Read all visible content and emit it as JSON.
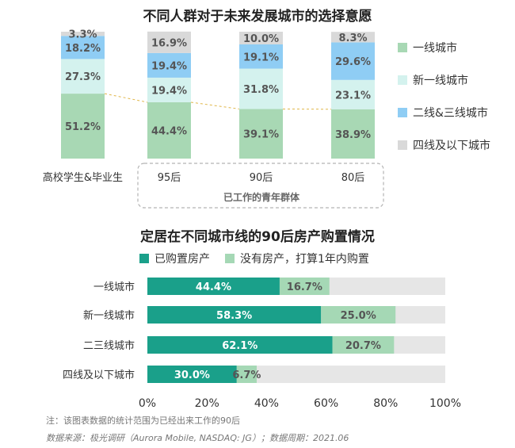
{
  "top_chart": {
    "title": "不同人群对于未来发展城市的选择意愿",
    "group_label": "已工作的青年群体",
    "legend": [
      {
        "label": "一线城市",
        "color": "#a8d8b4"
      },
      {
        "label": "新一线城市",
        "color": "#d4f2ee"
      },
      {
        "label": "二线&三线城市",
        "color": "#8fcdf4"
      },
      {
        "label": "四线及以下城市",
        "color": "#d9d9d9"
      }
    ]
  },
  "bottom_chart": {
    "title": "定居在不同城市线的90后房产购置情况",
    "legend": [
      {
        "label": "已购置房产",
        "color": "#1aa08a"
      },
      {
        "label": "没有房产，打算1年内购置",
        "color": "#a5d8b5"
      }
    ]
  },
  "note": "注：该图表数据的统计范围为已经出来工作的90后",
  "source": "数据来源：极光调研（Aurora Mobile, NASDAQ: JG）；数据周期：2021.06",
  "chart_data": [
    {
      "type": "bar",
      "stacked": true,
      "orientation": "vertical",
      "title": "不同人群对于未来发展城市的选择意愿",
      "categories": [
        "高校学生&毕业生",
        "95后",
        "90后",
        "80后"
      ],
      "series": [
        {
          "name": "一线城市",
          "values": [
            51.2,
            44.4,
            39.1,
            38.9
          ],
          "color": "#a8d8b4"
        },
        {
          "name": "新一线城市",
          "values": [
            27.3,
            19.4,
            31.8,
            23.1
          ],
          "color": "#d4f2ee"
        },
        {
          "name": "二线&三线城市",
          "values": [
            18.2,
            19.4,
            19.1,
            29.6
          ],
          "color": "#8fcdf4"
        },
        {
          "name": "四线及以下城市",
          "values": [
            3.3,
            16.9,
            10.0,
            8.3
          ],
          "color": "#d9d9d9"
        }
      ],
      "value_labels": [
        [
          "51.2%",
          "44.4%",
          "39.1%",
          "38.9%"
        ],
        [
          "27.3%",
          "19.4%",
          "31.8%",
          "23.1%"
        ],
        [
          "18.2%",
          "19.4%",
          "19.1%",
          "29.6%"
        ],
        [
          "3.3%",
          "16.9%",
          "10.0%",
          "8.3%"
        ]
      ],
      "legend_position": "right",
      "grid": false
    },
    {
      "type": "bar",
      "stacked": true,
      "orientation": "horizontal",
      "title": "定居在不同城市线的90后房产购置情况",
      "categories": [
        "一线城市",
        "新一线城市",
        "二三线城市",
        "四线及以下城市"
      ],
      "series": [
        {
          "name": "已购置房产",
          "values": [
            44.4,
            58.3,
            62.1,
            30.0
          ],
          "color": "#1aa08a"
        },
        {
          "name": "没有房产，打算1年内购置",
          "values": [
            16.7,
            25.0,
            20.7,
            6.7
          ],
          "color": "#a5d8b5"
        }
      ],
      "value_labels": [
        [
          "44.4%",
          "58.3%",
          "62.1%",
          "30.0%"
        ],
        [
          "16.7%",
          "25.0%",
          "20.7%",
          "6.7%"
        ]
      ],
      "xlim": [
        0,
        100
      ],
      "x_ticks": [
        "0%",
        "20%",
        "40%",
        "60%",
        "80%",
        "100%"
      ],
      "background_track_color": "#e6e6e6",
      "legend_position": "top",
      "grid": false
    }
  ]
}
